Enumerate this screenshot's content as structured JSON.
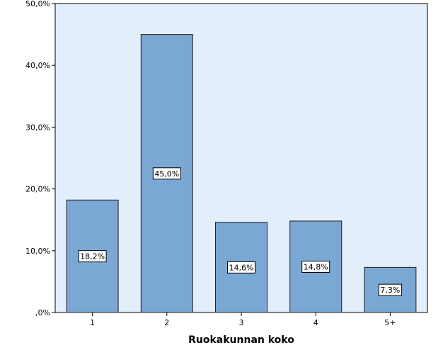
{
  "chart_data": {
    "type": "bar",
    "title": "",
    "xlabel": "Ruokakunnan koko",
    "ylabel": "",
    "categories": [
      "1",
      "2",
      "3",
      "4",
      "5+"
    ],
    "values": [
      18.2,
      45.0,
      14.6,
      14.8,
      7.3
    ],
    "data_labels": [
      "18,2%",
      "45,0%",
      "14,6%",
      "14,8%",
      "7,3%"
    ],
    "ylim": [
      0,
      50
    ],
    "yticks": [
      0,
      10,
      20,
      30,
      40,
      50
    ],
    "ytick_labels": [
      ",0%",
      "10,0%",
      "20,0%",
      "30,0%",
      "40,0%",
      "50,0%"
    ],
    "grid": false,
    "legend": "none",
    "colors": {
      "plot_background": "#e3eefb",
      "bar_fill": "#7ba7d4",
      "bar_stroke": "#1f1f1f",
      "label_box": "#ffffff"
    }
  }
}
